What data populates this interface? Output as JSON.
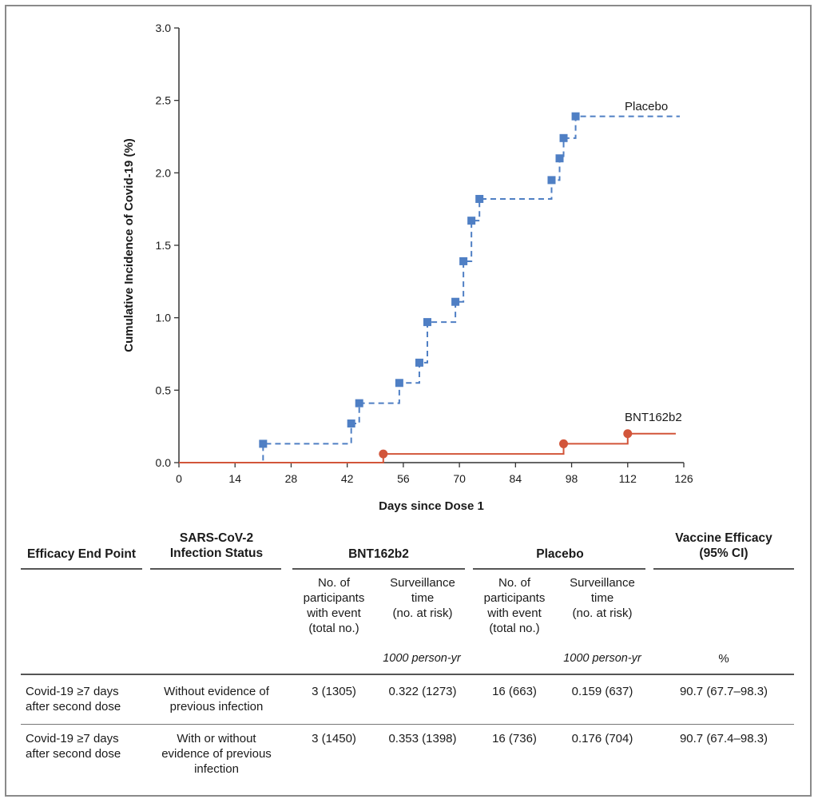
{
  "chart_data": {
    "type": "line",
    "xlabel": "Days since Dose 1",
    "ylabel": "Cumulative Incidence of Covid-19 (%)",
    "xlim": [
      0,
      126
    ],
    "ylim": [
      0,
      3.0
    ],
    "xticks": [
      "0",
      "14",
      "28",
      "42",
      "56",
      "70",
      "84",
      "98",
      "112",
      "126"
    ],
    "xtick_values": [
      0,
      14,
      28,
      42,
      56,
      70,
      84,
      98,
      112,
      126
    ],
    "yticks": [
      "0.0",
      "0.5",
      "1.0",
      "1.5",
      "2.0",
      "2.5",
      "3.0"
    ],
    "ytick_values": [
      0,
      0.5,
      1.0,
      1.5,
      2.0,
      2.5,
      3.0
    ],
    "grid": false,
    "legend": "direct labels",
    "series": [
      {
        "name": "Placebo",
        "color": "#4f7fc4",
        "style": "dashed",
        "marker": "square",
        "x": [
          0,
          21,
          43,
          45,
          55,
          60,
          62,
          69,
          71,
          73,
          75,
          93,
          95,
          96,
          99,
          125
        ],
        "y": [
          0,
          0.13,
          0.27,
          0.41,
          0.55,
          0.69,
          0.97,
          1.11,
          1.39,
          1.67,
          1.82,
          1.95,
          2.1,
          2.24,
          2.39,
          2.39
        ],
        "marker_x": [
          21,
          43,
          45,
          55,
          60,
          62,
          69,
          71,
          73,
          75,
          93,
          95,
          96,
          99
        ],
        "marker_y": [
          0.13,
          0.27,
          0.41,
          0.55,
          0.69,
          0.97,
          1.11,
          1.39,
          1.67,
          1.82,
          1.95,
          2.1,
          2.24,
          2.39
        ]
      },
      {
        "name": "BNT162b2",
        "color": "#d2553a",
        "style": "solid",
        "marker": "circle",
        "x": [
          0,
          51,
          96,
          112,
          124
        ],
        "y": [
          0,
          0.06,
          0.13,
          0.2,
          0.2
        ],
        "marker_x": [
          51,
          96,
          112
        ],
        "marker_y": [
          0.06,
          0.13,
          0.2
        ]
      }
    ]
  },
  "table": {
    "headers": {
      "endpoint": "Efficacy End Point",
      "status_l1": "SARS-CoV-2",
      "status_l2": "Infection Status",
      "bnt": "BNT162b2",
      "placebo": "Placebo",
      "ve_l1": "Vaccine Efficacy",
      "ve_l2": "(95% CI)"
    },
    "subheaders": {
      "bnt_n": [
        "No. of",
        "participants",
        "with event",
        "(total no.)"
      ],
      "bnt_t": [
        "Surveillance",
        "time",
        "(no. at risk)"
      ],
      "pl_n": [
        "No. of",
        "participants",
        "with event",
        "(total no.)"
      ],
      "pl_t": [
        "Surveillance",
        "time",
        "(no. at risk)"
      ]
    },
    "units": {
      "bnt_t": "1000 person-yr",
      "pl_t": "1000 person-yr",
      "ve": "%"
    },
    "rows": [
      {
        "endpoint": [
          "Covid-19 ≥7 days",
          "after second dose"
        ],
        "status": [
          "Without evidence of",
          "previous infection"
        ],
        "bnt_n": "3 (1305)",
        "bnt_t": "0.322 (1273)",
        "pl_n": "16 (663)",
        "pl_t": "0.159 (637)",
        "ve": "90.7 (67.7–98.3)"
      },
      {
        "endpoint": [
          "Covid-19 ≥7 days",
          "after second dose"
        ],
        "status": [
          "With or without",
          "evidence of previous",
          "infection"
        ],
        "bnt_n": "3 (1450)",
        "bnt_t": "0.353 (1398)",
        "pl_n": "16 (736)",
        "pl_t": "0.176 (704)",
        "ve": "90.7 (67.4–98.3)"
      }
    ]
  }
}
